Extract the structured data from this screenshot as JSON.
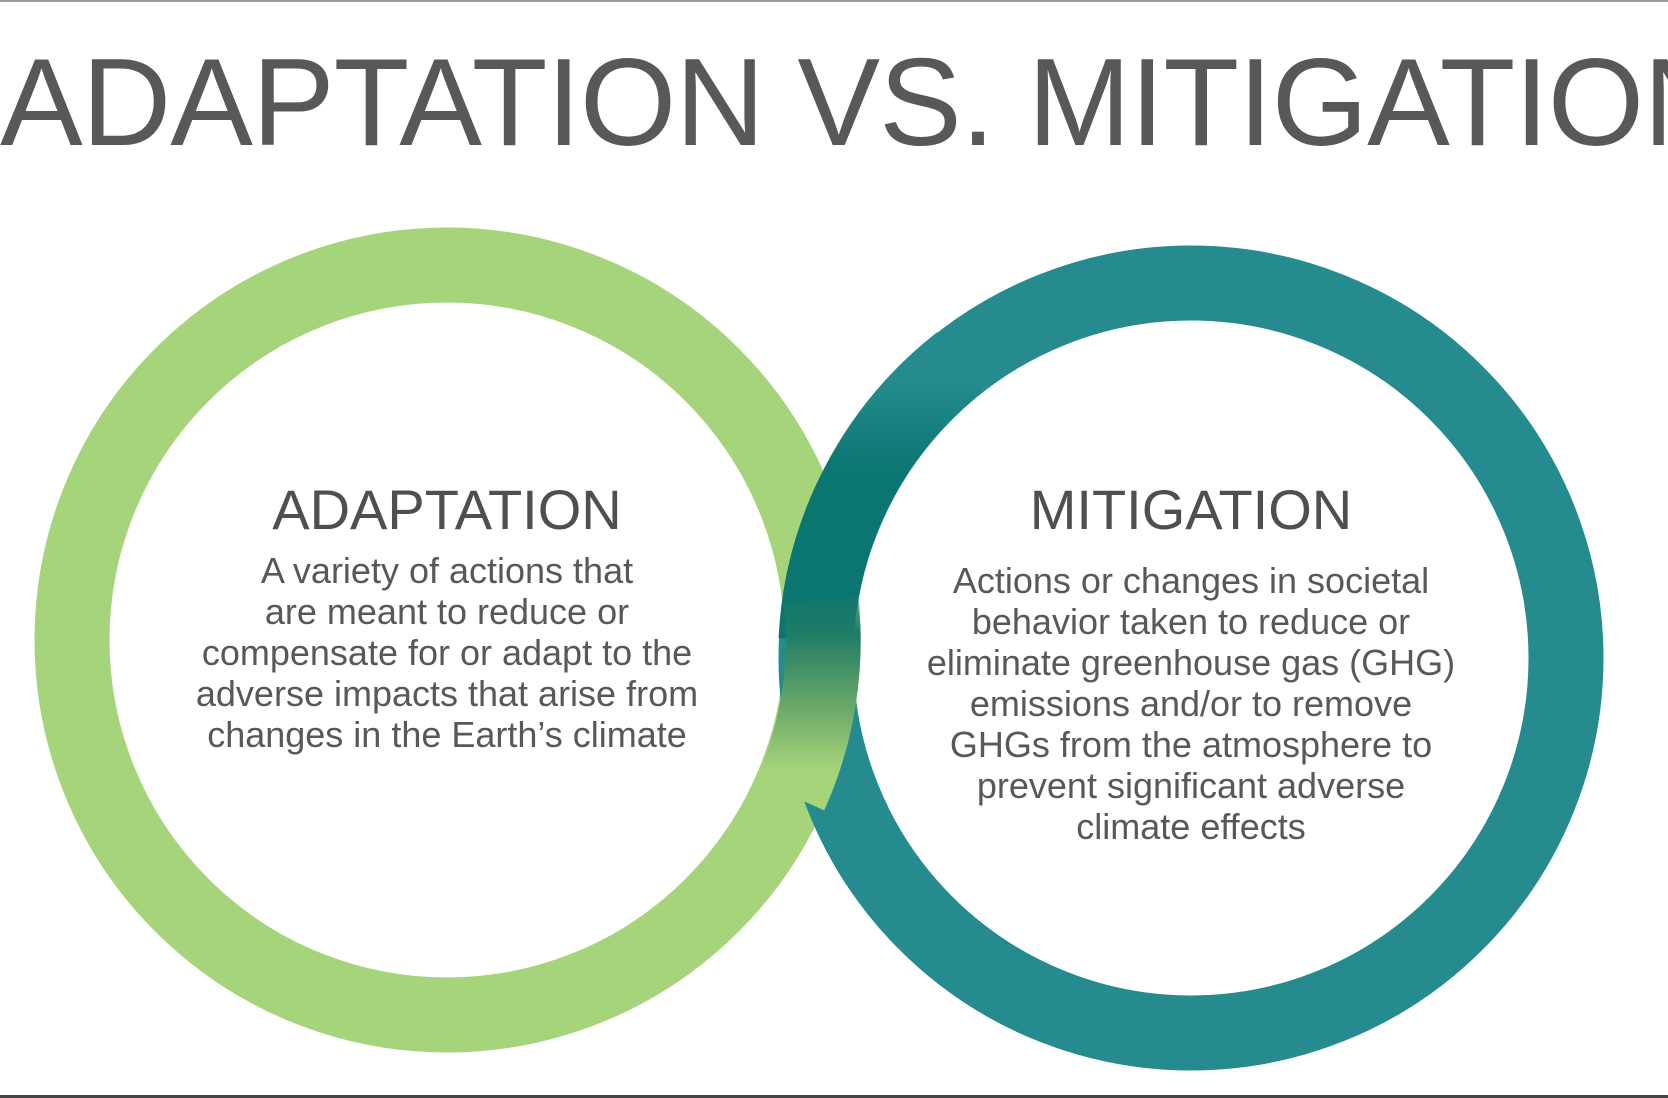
{
  "title": "ADAPTATION VS. MITIGATION",
  "colors": {
    "adaptation": "#a6d47a",
    "mitigation": "#258b8f",
    "overlap": "#0b7570",
    "text": "#58585a"
  },
  "adaptation": {
    "heading": "ADAPTATION",
    "lines": [
      "A variety of actions that",
      "are meant to reduce or",
      "compensate for or adapt to the",
      "adverse impacts that arise from",
      "changes in the Earth’s climate"
    ]
  },
  "mitigation": {
    "heading": "MITIGATION",
    "lines": [
      "Actions or changes in societal",
      "behavior taken to reduce or",
      "eliminate greenhouse gas (GHG)",
      "emissions and/or to remove",
      "GHGs from the atmosphere to",
      "prevent significant adverse",
      "climate effects"
    ]
  }
}
